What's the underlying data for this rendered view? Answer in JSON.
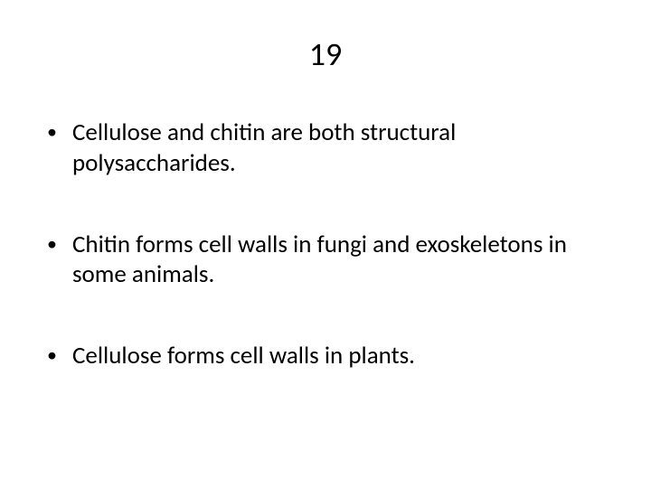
{
  "slide": {
    "title": "19",
    "bullets": [
      {
        "text": "Cellulose and chitin are both structural polysaccharides."
      },
      {
        "text": "Chitin forms cell walls in fungi and exoskeletons in some animals."
      },
      {
        "text": "Cellulose forms cell walls in plants."
      }
    ],
    "bullet_marker": "•",
    "colors": {
      "background": "#ffffff",
      "text": "#000000"
    },
    "typography": {
      "title_fontsize": 36,
      "body_fontsize": 27,
      "font_family": "Calibri"
    }
  }
}
